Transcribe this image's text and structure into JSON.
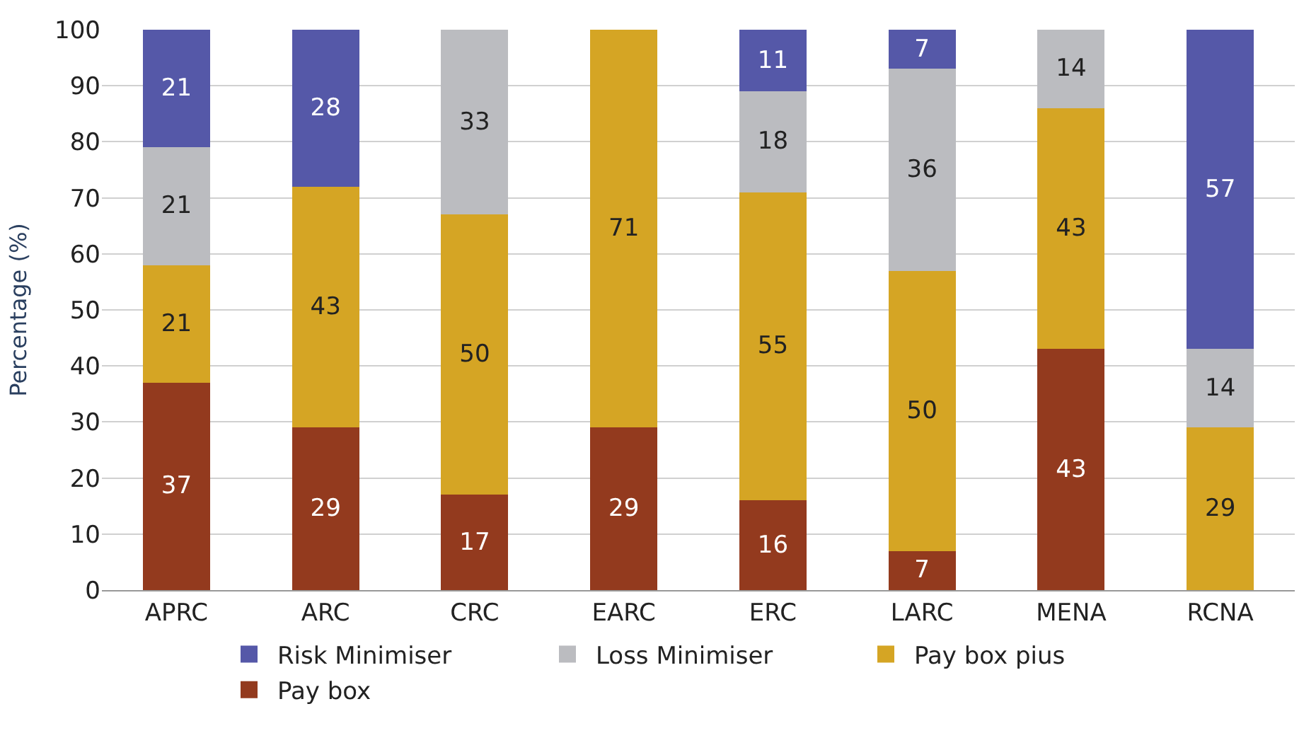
{
  "chart_data": {
    "type": "bar",
    "stacked": true,
    "ylabel": "Percentage (%)",
    "categories": [
      "APRC",
      "ARC",
      "CRC",
      "EARC",
      "ERC",
      "LARC",
      "MENA",
      "RCNA"
    ],
    "series": [
      {
        "name": "Pay box",
        "color": "#933a1e",
        "values": [
          37,
          29,
          17,
          29,
          16,
          7,
          43,
          null
        ]
      },
      {
        "name": "Pay box pius",
        "color": "#d5a524",
        "values": [
          21,
          43,
          50,
          71,
          55,
          50,
          43,
          29
        ]
      },
      {
        "name": "Loss Minimiser",
        "color": "#bbbcc0",
        "values": [
          21,
          null,
          33,
          null,
          18,
          36,
          14,
          14
        ]
      },
      {
        "name": "Risk Minimiser",
        "color": "#5558a8",
        "values": [
          21,
          28,
          null,
          null,
          11,
          7,
          null,
          57
        ]
      }
    ],
    "ylim": [
      0,
      100
    ],
    "yticks": [
      0,
      10,
      20,
      30,
      40,
      50,
      60,
      70,
      80,
      90,
      100
    ],
    "grid": "y",
    "legend": "bottom",
    "data_labels": true
  }
}
